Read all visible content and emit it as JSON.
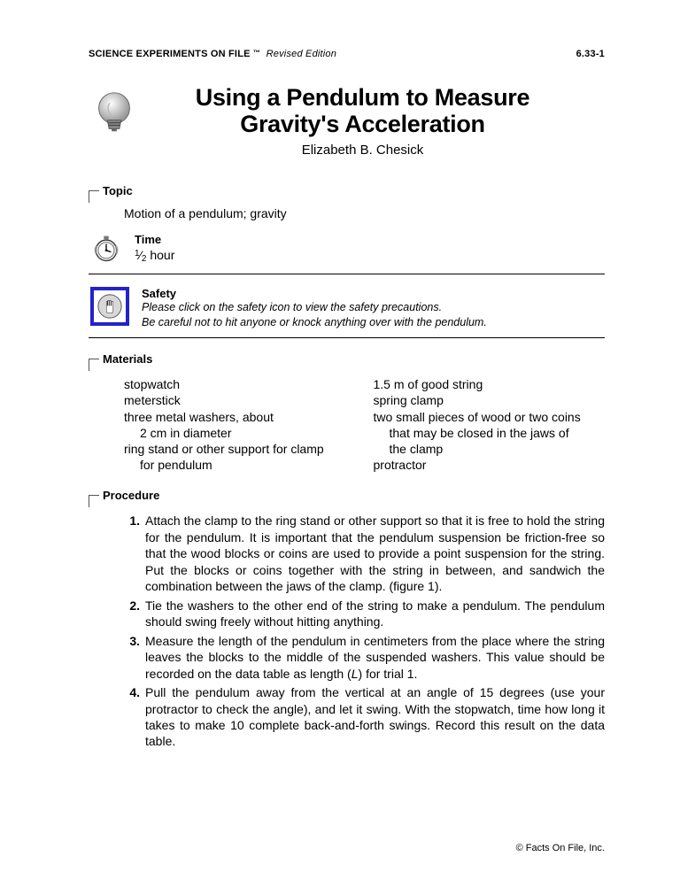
{
  "header": {
    "series": "SCIENCE EXPERIMENTS ON FILE",
    "tm": "™",
    "edition": "Revised Edition",
    "page_no": "6.33-1"
  },
  "title": {
    "line1": "Using a Pendulum to Measure",
    "line2": "Gravity's Acceleration",
    "author": "Elizabeth B. Chesick"
  },
  "topic": {
    "label": "Topic",
    "text": "Motion of a pendulum; gravity"
  },
  "time": {
    "label": "Time",
    "value_suffix": "hour"
  },
  "safety": {
    "label": "Safety",
    "line1": "Please click on the safety icon to view the safety precautions.",
    "line2": "Be careful not to hit anyone or knock anything over with the pendulum."
  },
  "materials": {
    "label": "Materials",
    "col1": [
      "stopwatch",
      "meterstick",
      "three metal washers, about",
      "    2 cm in diameter",
      "ring stand or other support for clamp",
      "    for pendulum"
    ],
    "col2": [
      "1.5 m of good string",
      "spring clamp",
      "two small pieces of wood or two coins",
      "    that may be closed in the jaws of",
      "    the clamp",
      "protractor"
    ]
  },
  "procedure": {
    "label": "Procedure",
    "steps": [
      "Attach the clamp to the ring stand or other support so that it is free to hold the string for the pendulum. It is important that the pendulum suspension be friction-free so that the wood blocks or coins are used to provide a point suspension for the string. Put the blocks or coins together with the string in between, and sandwich the combination between the jaws of the clamp. (figure 1).",
      "Tie the washers to the other end of the string to make a pendulum. The pendulum should swing freely without hitting anything.",
      "Measure the length of the pendulum in centimeters from the place where the string leaves the blocks to the middle of the suspended washers. This value should be recorded on the data table as length (<i>L</i>) for trial 1.",
      "Pull the pendulum away from the vertical at an angle of 15 degrees (use your protractor to check the angle), and let it swing. With the stopwatch, time how long it takes to make 10 complete back-and-forth swings. Record this result on the data table."
    ]
  },
  "footer": "© Facts On File, Inc.",
  "colors": {
    "safety_box_border": "#2222cc",
    "text": "#000000",
    "icon_gray": "#8a8a8a"
  }
}
